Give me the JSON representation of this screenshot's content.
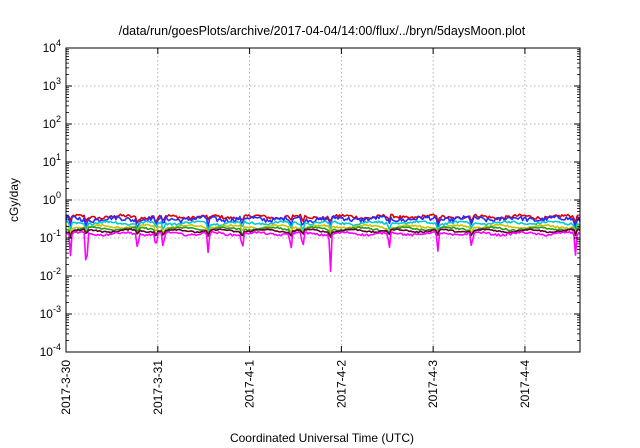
{
  "chart_data": {
    "type": "line",
    "title": "/data/run/goesPlots/archive/2017-04-04/14:00/flux/../bryn/5daysMoon.plot",
    "xlabel": "Coordinated Universal Time (UTC)",
    "ylabel": "cGy/day",
    "yscale": "log",
    "ylim_exponents": [
      -4,
      4
    ],
    "y_tick_base": "10",
    "y_tick_exponents": [
      "-4",
      "-3",
      "-2",
      "-1",
      "0",
      "1",
      "2",
      "3",
      "4"
    ],
    "xlim_days": [
      0,
      5.6
    ],
    "x_tick_labels": [
      "2017-3-30",
      "2017-3-31",
      "2017-4-1",
      "2017-4-2",
      "2017-4-3",
      "2017-4-4"
    ],
    "x_tick_days": [
      0,
      1,
      2,
      3,
      4,
      5
    ],
    "grid": true,
    "legend": "none",
    "series": [
      {
        "color": "#e00000",
        "base": 0.36,
        "jitter": 0.1,
        "dip_depth": 0.3
      },
      {
        "color": "#2a2aff",
        "base": 0.32,
        "jitter": 0.14,
        "dip_depth": 0.45
      },
      {
        "color": "#00cccc",
        "base": 0.25,
        "jitter": 0.07,
        "dip_depth": 0.4
      },
      {
        "color": "#d0c000",
        "base": 0.2,
        "jitter": 0.05,
        "dip_depth": 0.35
      },
      {
        "color": "#20a020",
        "base": 0.175,
        "jitter": 0.05,
        "dip_depth": 0.35
      },
      {
        "color": "#600030",
        "base": 0.155,
        "jitter": 0.04,
        "dip_depth": 0.3
      },
      {
        "color": "#ff00ff",
        "base": 0.13,
        "jitter": 0.06,
        "dip_depth": 0.75
      }
    ],
    "dips_days": [
      0.05,
      0.22,
      0.78,
      0.98,
      1.06,
      1.55,
      1.92,
      2.45,
      2.58,
      2.88,
      3.52,
      4.05,
      4.42,
      5.55
    ]
  }
}
